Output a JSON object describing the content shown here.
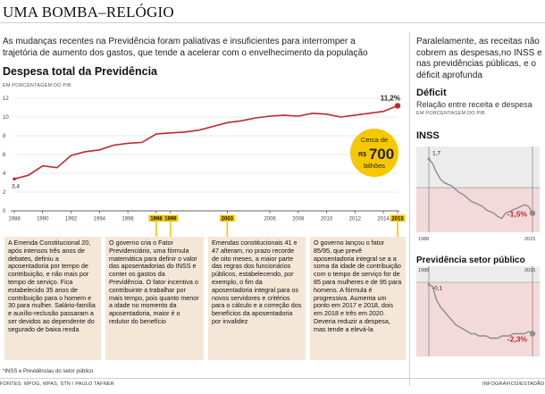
{
  "header": {
    "title": "UMA BOMBA–RELÓGIO"
  },
  "intro": "As mudanças recentes na Previdência foram paliativas e insuficientes para interromper a trajetória de aumento dos gastos, que tende a acelerar com o envelhecimento da população",
  "right_intro": "Paralelamente, as receitas não cobrem as despesas,no INSS e nas previdências públicas, e o déficit aprofunda",
  "main_chart": {
    "title": "Despesa total da Previdência",
    "unit": "EM PORCENTAGEM DO PIB",
    "first_label": "3,4",
    "last_label": "11,2%",
    "callout_top": "Cerca de",
    "callout_prefix": "R$",
    "callout_value": "700",
    "callout_bottom": "bilhões",
    "highlight_years": [
      "1998",
      "1999",
      "2003",
      "2015"
    ]
  },
  "right_panel": {
    "title": "Déficit",
    "subtitle": "Relação entre receita e despesa",
    "unit": "EM PORCENTAGEM DO PIB"
  },
  "inss_chart": {
    "title": "INSS",
    "first_label": "1,7",
    "last_label": "-1,5%",
    "start_year": "1988",
    "end_year": "2015"
  },
  "prev_chart": {
    "title": "Previdência setor público",
    "first_label": "-0,1",
    "last_label": "-2,3%",
    "start_year": "1988",
    "end_year": "2015"
  },
  "events": [
    {
      "text": "A Emenda Constitucional 20, após intensos três anos de debates, definiu a aposentadoria por tempo de contribuição, e não mais por tempo de serviço. Fica estabelecido 35 anos de contribuição para o homem e 30 para mulher. Salário-família e auxílio-reclusão passaram a ser devidos ao dependente do segurado de baixa renda"
    },
    {
      "text": "O governo cria o Fator Previdenciário, uma fórmula matemática para definir o valor das aposentadorias do INSS e conter os gastos da Previdência. O fator incentiva o contribuinte a trabalhar por mais tempo, pois quanto menor a idade no momento da aposentadoria, maior é o redutor do benefício"
    },
    {
      "text": "Emendas constitucionais 41 e 47 alteram, no prazo recorde de oito meses, a maior parte das regras dos funcionários públicos, estabelecendo, por exemplo, o fim da aposentadoria integral para os novos servidores e critérios para o cálculo e a correção dos benefícios da aposentadoria por invalidez"
    },
    {
      "text": "O governo lançou o fator 85/95, que prevê aposentadoria integral se a a soma da idade de contribuição com o tempo de serviço for de 85 para mulheres e de 95 para homens. A fórmula é progressiva. Aumenta um ponto em 2017 e 2018, dois em 2018 e três em 2020. Deveria reduzir a despesa, mas tende a elevá-la"
    }
  ],
  "footnote": "*INSS e Previdências do setor público",
  "sources": "FONTES: MPOG, MPAS, STN / PAULO TAFNER",
  "credit": "INFOGRÁFICO/ESTADÃO",
  "colors": {
    "line": "#c0272d",
    "accent": "#c0272d",
    "callout": "#f6c800",
    "box": "#f4e7d8",
    "panel_bg": "#ececec"
  },
  "chart_data": [
    {
      "type": "line",
      "title": "Despesa total da Previdência",
      "ylabel": "EM PORCENTAGEM DO PIB",
      "ylim": [
        0,
        12
      ],
      "yticks": [
        0,
        2,
        4,
        6,
        8,
        10,
        12
      ],
      "xticks": [
        "1988",
        "1990",
        "1992",
        "1994",
        "1996",
        "1998",
        "1999",
        "2003",
        "2006",
        "2008",
        "2010",
        "2012",
        "2014",
        "2015"
      ],
      "x": [
        1988,
        1989,
        1990,
        1991,
        1992,
        1993,
        1994,
        1995,
        1996,
        1997,
        1998,
        1999,
        2000,
        2001,
        2002,
        2003,
        2004,
        2005,
        2006,
        2007,
        2008,
        2009,
        2010,
        2011,
        2012,
        2013,
        2014,
        2015
      ],
      "values": [
        3.4,
        3.8,
        4.8,
        4.6,
        5.9,
        6.3,
        6.5,
        7.0,
        7.2,
        7.3,
        8.2,
        8.3,
        8.4,
        8.6,
        9.0,
        9.4,
        9.6,
        9.9,
        10.1,
        10.2,
        10.1,
        10.4,
        10.3,
        10.0,
        10.2,
        10.4,
        10.6,
        11.2
      ]
    },
    {
      "type": "line",
      "title": "INSS",
      "x": [
        1988,
        1989,
        1990,
        1991,
        1992,
        1993,
        1994,
        1995,
        1996,
        1997,
        1998,
        1999,
        2000,
        2001,
        2002,
        2003,
        2004,
        2005,
        2006,
        2007,
        2008,
        2009,
        2010,
        2011,
        2012,
        2013,
        2014,
        2015
      ],
      "values": [
        1.7,
        1.4,
        0.9,
        0.5,
        0.3,
        0.2,
        0.1,
        -0.1,
        -0.3,
        -0.4,
        -0.6,
        -0.8,
        -0.9,
        -1.0,
        -1.1,
        -1.3,
        -1.4,
        -1.5,
        -1.7,
        -1.8,
        -1.5,
        -1.4,
        -1.3,
        -1.2,
        -1.1,
        -1.0,
        -1.1,
        -1.5
      ]
    },
    {
      "type": "line",
      "title": "Previdência setor público",
      "x": [
        1988,
        1989,
        1990,
        1991,
        1992,
        1993,
        1994,
        1995,
        1996,
        1997,
        1998,
        1999,
        2000,
        2001,
        2002,
        2003,
        2004,
        2005,
        2006,
        2007,
        2008,
        2009,
        2010,
        2011,
        2012,
        2013,
        2014,
        2015
      ],
      "values": [
        -0.1,
        -0.2,
        -0.8,
        -1.1,
        -1.3,
        -1.5,
        -1.7,
        -1.9,
        -2.0,
        -2.1,
        -2.2,
        -2.3,
        -2.3,
        -2.4,
        -2.4,
        -2.4,
        -2.5,
        -2.5,
        -2.5,
        -2.4,
        -2.4,
        -2.4,
        -2.3,
        -2.3,
        -2.3,
        -2.3,
        -2.2,
        -2.3
      ]
    }
  ]
}
